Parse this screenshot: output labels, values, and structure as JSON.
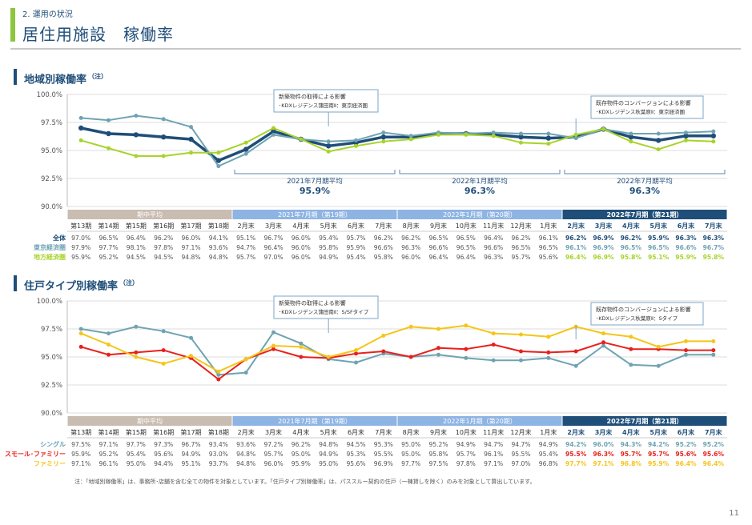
{
  "header": {
    "section_label": "2. 運用の状況",
    "page_title": "居住用施設　稼働率"
  },
  "footnote": "注：「地域別稼働率」は、事務所･店舗を含む全ての物件を対象としています。「住戸タイプ別稼働率」は、パススルー契約の住戸（一棟貸しを除く）のみを対象として算出しています。",
  "page_number": "11",
  "colors": {
    "navy": "#1f4e79",
    "teal": "#6fa3b2",
    "lime": "#a8d32a",
    "red": "#e8201c",
    "yellow": "#f5c518",
    "period_gray": "#c9bcb1",
    "period_blue": "#8eb4e3",
    "period_dark": "#1f4e79"
  },
  "chart_data": [
    {
      "type": "line",
      "title": "地域別稼働率",
      "title_note": "（注）",
      "ylim": [
        90.0,
        100.0
      ],
      "yticks": [
        "100.0%",
        "97.5%",
        "95.0%",
        "92.5%",
        "90.0%"
      ],
      "ytick_values": [
        100.0,
        97.5,
        95.0,
        92.5,
        90.0
      ],
      "period_headers": [
        {
          "label": "期中平均",
          "span": 6,
          "style": "gray"
        },
        {
          "label": "2021年7月期（第19期）",
          "span": 6,
          "style": "blue"
        },
        {
          "label": "2022年1月期（第20期）",
          "span": 6,
          "style": "blue"
        },
        {
          "label": "2022年7月期（第21期）",
          "span": 6,
          "style": "dark"
        }
      ],
      "categories": [
        "第13期",
        "第14期",
        "第15期",
        "第16期",
        "第17期",
        "第18期",
        "2月末",
        "3月末",
        "4月末",
        "5月末",
        "6月末",
        "7月末",
        "8月末",
        "9月末",
        "10月末",
        "11月末",
        "12月末",
        "1月末",
        "2月末",
        "3月末",
        "4月末",
        "5月末",
        "6月末",
        "7月末"
      ],
      "series": [
        {
          "name": "全体",
          "color": "#1f4e79",
          "width": 3.5,
          "values": [
            97.0,
            96.5,
            96.4,
            96.2,
            96.0,
            94.1,
            95.1,
            96.7,
            96.0,
            95.4,
            95.7,
            96.2,
            96.2,
            96.5,
            96.5,
            96.4,
            96.2,
            96.1,
            96.2,
            96.9,
            96.2,
            95.9,
            96.3,
            96.3
          ],
          "labels": [
            "97.0%",
            "96.5%",
            "96.4%",
            "96.2%",
            "96.0%",
            "94.1%",
            "95.1%",
            "96.7%",
            "96.0%",
            "95.4%",
            "95.7%",
            "96.2%",
            "96.2%",
            "96.5%",
            "96.5%",
            "96.4%",
            "96.2%",
            "96.1%",
            "96.2%",
            "96.9%",
            "96.2%",
            "95.9%",
            "96.3%",
            "96.3%"
          ]
        },
        {
          "name": "東京経済圏",
          "color": "#6fa3b2",
          "width": 2,
          "values": [
            97.9,
            97.7,
            98.1,
            97.8,
            97.1,
            93.6,
            94.7,
            96.4,
            96.0,
            95.8,
            95.9,
            96.6,
            96.3,
            96.6,
            96.5,
            96.6,
            96.5,
            96.5,
            96.1,
            96.9,
            96.5,
            96.5,
            96.6,
            96.7
          ],
          "labels": [
            "97.9%",
            "97.7%",
            "98.1%",
            "97.8%",
            "97.1%",
            "93.6%",
            "94.7%",
            "96.4%",
            "96.0%",
            "95.8%",
            "95.9%",
            "96.6%",
            "96.3%",
            "96.6%",
            "96.5%",
            "96.6%",
            "96.5%",
            "96.5%",
            "96.1%",
            "96.9%",
            "96.5%",
            "96.5%",
            "96.6%",
            "96.7%"
          ]
        },
        {
          "name": "地方経済圏",
          "color": "#a8d32a",
          "width": 2,
          "values": [
            95.9,
            95.2,
            94.5,
            94.5,
            94.8,
            94.8,
            95.7,
            97.0,
            96.0,
            94.9,
            95.4,
            95.8,
            96.0,
            96.4,
            96.4,
            96.3,
            95.7,
            95.6,
            96.4,
            96.9,
            95.8,
            95.1,
            95.9,
            95.8
          ],
          "labels": [
            "95.9%",
            "95.2%",
            "94.5%",
            "94.5%",
            "94.8%",
            "94.8%",
            "95.7%",
            "97.0%",
            "96.0%",
            "94.9%",
            "95.4%",
            "95.8%",
            "96.0%",
            "96.4%",
            "96.4%",
            "96.3%",
            "95.7%",
            "95.6%",
            "96.4%",
            "96.9%",
            "95.8%",
            "95.1%",
            "95.9%",
            "95.8%"
          ]
        }
      ],
      "averages": [
        {
          "label": "2021年7月期平均",
          "value_label": "95.9%",
          "from": 6,
          "to": 11
        },
        {
          "label": "2022年1月期平均",
          "value_label": "96.3%",
          "from": 12,
          "to": 17
        },
        {
          "label": "2022年7月期平均",
          "value_label": "96.3%",
          "from": 18,
          "to": 23
        }
      ],
      "callouts": [
        {
          "line1": "新築物件の取得による影響",
          "line2": "･KDXレジデンス蒲田南Ⅱ：東京経済圏",
          "anchor": 9
        },
        {
          "line1": "既存物件のコンバージョンによる影響",
          "line2": "･KDXレジデンス秋葉原Ⅱ：東京経済圏",
          "anchor": 18
        }
      ]
    },
    {
      "type": "line",
      "title": "住戸タイプ別稼働率",
      "title_note": "（注）",
      "ylim": [
        90.0,
        100.0
      ],
      "yticks": [
        "100.0%",
        "97.5%",
        "95.0%",
        "92.5%",
        "90.0%"
      ],
      "ytick_values": [
        100.0,
        97.5,
        95.0,
        92.5,
        90.0
      ],
      "period_headers": [
        {
          "label": "期中平均",
          "span": 6,
          "style": "gray"
        },
        {
          "label": "2021年7月期（第19期）",
          "span": 6,
          "style": "blue"
        },
        {
          "label": "2022年1月期（第20期）",
          "span": 6,
          "style": "blue"
        },
        {
          "label": "2022年7月期（第21期）",
          "span": 6,
          "style": "dark"
        }
      ],
      "categories": [
        "第13期",
        "第14期",
        "第15期",
        "第16期",
        "第17期",
        "第18期",
        "2月末",
        "3月末",
        "4月末",
        "5月末",
        "6月末",
        "7月末",
        "8月末",
        "9月末",
        "10月末",
        "11月末",
        "12月末",
        "1月末",
        "2月末",
        "3月末",
        "4月末",
        "5月末",
        "6月末",
        "7月末"
      ],
      "series": [
        {
          "name": "シングル",
          "color": "#6fa3b2",
          "width": 2,
          "values": [
            97.5,
            97.1,
            97.7,
            97.3,
            96.7,
            93.4,
            93.6,
            97.2,
            96.2,
            94.8,
            94.5,
            95.3,
            95.0,
            95.2,
            94.9,
            94.7,
            94.7,
            94.9,
            94.2,
            96.0,
            94.3,
            94.2,
            95.2,
            95.2
          ],
          "labels": [
            "97.5%",
            "97.1%",
            "97.7%",
            "97.3%",
            "96.7%",
            "93.4%",
            "93.6%",
            "97.2%",
            "96.2%",
            "94.8%",
            "94.5%",
            "95.3%",
            "95.0%",
            "95.2%",
            "94.9%",
            "94.7%",
            "94.7%",
            "94.9%",
            "94.2%",
            "96.0%",
            "94.3%",
            "94.2%",
            "95.2%",
            "95.2%"
          ]
        },
        {
          "name": "スモール･ファミリー",
          "color": "#e8201c",
          "width": 2,
          "values": [
            95.9,
            95.2,
            95.4,
            95.6,
            94.9,
            93.0,
            94.8,
            95.7,
            95.0,
            94.9,
            95.3,
            95.5,
            95.0,
            95.8,
            95.7,
            96.1,
            95.5,
            95.4,
            95.5,
            96.3,
            95.7,
            95.7,
            95.6,
            95.6
          ],
          "labels": [
            "95.9%",
            "95.2%",
            "95.4%",
            "95.6%",
            "94.9%",
            "93.0%",
            "94.8%",
            "95.7%",
            "95.0%",
            "94.9%",
            "95.3%",
            "95.5%",
            "95.0%",
            "95.8%",
            "95.7%",
            "96.1%",
            "95.5%",
            "95.4%",
            "95.5%",
            "96.3%",
            "95.7%",
            "95.7%",
            "95.6%",
            "95.6%"
          ]
        },
        {
          "name": "ファミリー",
          "color": "#f5c518",
          "width": 2,
          "values": [
            97.1,
            96.1,
            95.0,
            94.4,
            95.1,
            93.7,
            94.8,
            96.0,
            95.9,
            95.0,
            95.6,
            96.9,
            97.7,
            97.5,
            97.8,
            97.1,
            97.0,
            96.8,
            97.7,
            97.1,
            96.8,
            95.9,
            96.4,
            96.4
          ],
          "labels": [
            "97.1%",
            "96.1%",
            "95.0%",
            "94.4%",
            "95.1%",
            "93.7%",
            "94.8%",
            "96.0%",
            "95.9%",
            "95.0%",
            "95.6%",
            "96.9%",
            "97.7%",
            "97.5%",
            "97.8%",
            "97.1%",
            "97.0%",
            "96.8%",
            "97.7%",
            "97.1%",
            "96.8%",
            "95.9%",
            "96.4%",
            "96.4%"
          ]
        }
      ],
      "averages": [],
      "callouts": [
        {
          "line1": "新築物件の取得による影響",
          "line2": "･KDXレジデンス蒲田南Ⅱ：S/SFタイプ",
          "anchor": 9
        },
        {
          "line1": "既存物件のコンバージョンによる影響",
          "line2": "･KDXレジデンス秋葉原Ⅱ：Sタイプ",
          "anchor": 18
        }
      ]
    }
  ]
}
